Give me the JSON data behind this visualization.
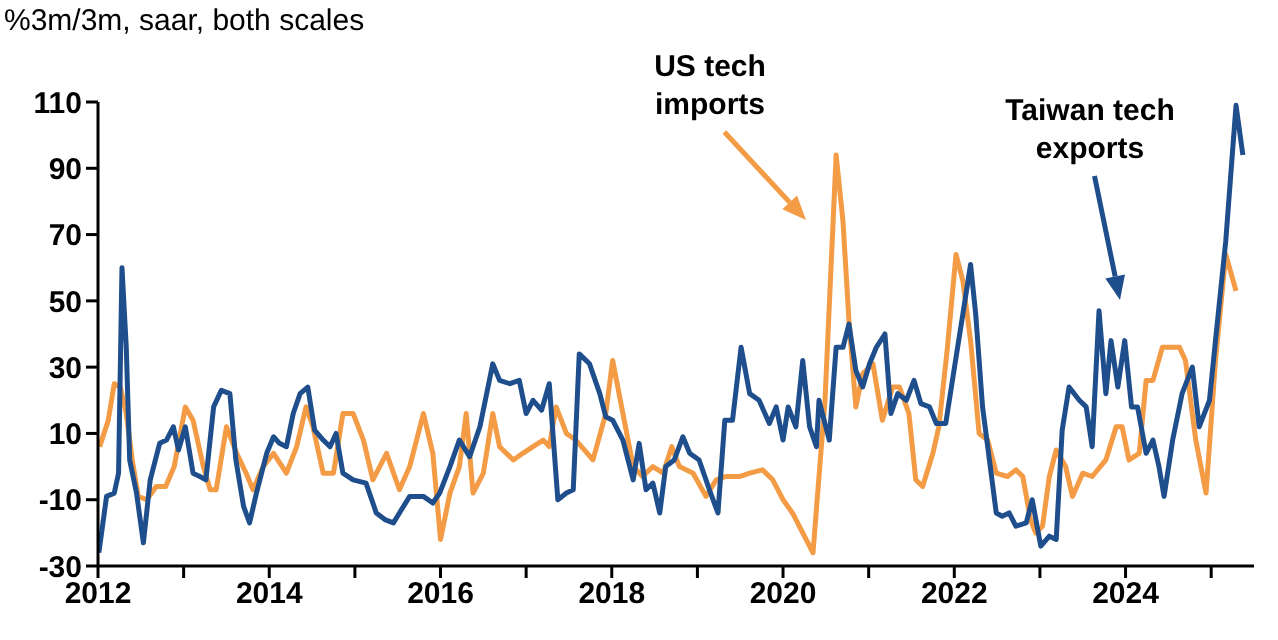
{
  "chart_data": {
    "type": "line",
    "title": "%3m/3m, saar, both scales",
    "xlim": [
      2012,
      2025.5
    ],
    "xticks": [
      2012,
      {
        "value": 2013,
        "label": null
      },
      2014,
      {
        "value": 2015,
        "label": null
      },
      2016,
      {
        "value": 2017,
        "label": null
      },
      2018,
      {
        "value": 2019,
        "label": null
      },
      2020,
      {
        "value": 2021,
        "label": null
      },
      2022,
      {
        "value": 2023,
        "label": null
      },
      2024,
      {
        "value": 2025,
        "label": null
      }
    ],
    "ylim": [
      -30,
      110
    ],
    "yticks": [
      -30,
      -10,
      10,
      30,
      50,
      70,
      90,
      110
    ],
    "grid": false,
    "legend": false,
    "marker": "none",
    "line_style": "solid",
    "series": [
      {
        "color": "#f39b45",
        "x": [
          2012.02,
          2012.12,
          2012.19,
          2012.26,
          2012.33,
          2012.4,
          2012.47,
          2012.57,
          2012.68,
          2012.79,
          2012.89,
          2013.02,
          2013.11,
          2013.23,
          2013.31,
          2013.38,
          2013.5,
          2013.62,
          2013.73,
          2013.81,
          2013.93,
          2014.05,
          2014.2,
          2014.32,
          2014.43,
          2014.51,
          2014.63,
          2014.75,
          2014.86,
          2014.98,
          2015.1,
          2015.21,
          2015.37,
          2015.52,
          2015.64,
          2015.8,
          2015.91,
          2016.0,
          2016.11,
          2016.22,
          2016.3,
          2016.38,
          2016.5,
          2016.61,
          2016.69,
          2016.85,
          2016.96,
          2017.08,
          2017.2,
          2017.27,
          2017.35,
          2017.47,
          2017.58,
          2017.78,
          2017.93,
          2018.01,
          2018.13,
          2018.25,
          2018.36,
          2018.48,
          2018.6,
          2018.7,
          2018.79,
          2018.95,
          2019.1,
          2019.22,
          2019.33,
          2019.49,
          2019.61,
          2019.76,
          2019.88,
          2020.0,
          2020.11,
          2020.23,
          2020.35,
          2020.49,
          2020.62,
          2020.7,
          2020.77,
          2020.85,
          2020.93,
          2021.05,
          2021.16,
          2021.28,
          2021.36,
          2021.47,
          2021.55,
          2021.63,
          2021.75,
          2021.82,
          2021.92,
          2022.02,
          2022.1,
          2022.19,
          2022.29,
          2022.39,
          2022.49,
          2022.62,
          2022.72,
          2022.8,
          2022.89,
          2022.95,
          2023.03,
          2023.11,
          2023.19,
          2023.3,
          2023.38,
          2023.5,
          2023.61,
          2023.77,
          2023.89,
          2023.96,
          2024.04,
          2024.16,
          2024.24,
          2024.32,
          2024.43,
          2024.63,
          2024.7,
          2024.82,
          2024.94,
          2025.05,
          2025.17,
          2025.29
        ],
        "values": [
          6,
          14,
          25,
          24,
          16,
          2,
          -9,
          -10,
          -6,
          -6,
          0,
          18,
          14,
          0,
          -7,
          -7,
          12,
          4,
          -2,
          -7,
          0,
          4,
          -2,
          6,
          18,
          12,
          -2,
          -2,
          16,
          16,
          8,
          -4,
          4,
          -7,
          0,
          16,
          4,
          -22,
          -8,
          0,
          16,
          -8,
          -2,
          16,
          6,
          2,
          4,
          6,
          8,
          6,
          18,
          10,
          8,
          2,
          16,
          32,
          16,
          0,
          -3,
          0,
          -2,
          6,
          0,
          -2,
          -9,
          -4,
          -3,
          -3,
          -2,
          -1,
          -4,
          -10,
          -14,
          -20,
          -26,
          20,
          94,
          74,
          44,
          18,
          28,
          31,
          14,
          24,
          24,
          16,
          -4,
          -6,
          4,
          12,
          36,
          64,
          56,
          38,
          10,
          8,
          -2,
          -3,
          -1,
          -3,
          -16,
          -20,
          -18,
          -3,
          5,
          0,
          -9,
          -2,
          -3,
          2,
          12,
          12,
          2,
          4,
          26,
          26,
          36,
          36,
          32,
          8,
          -8,
          32,
          64,
          53
        ]
      },
      {
        "color": "#1f4e8c",
        "x": [
          2012.01,
          2012.1,
          2012.19,
          2012.24,
          2012.28,
          2012.33,
          2012.37,
          2012.45,
          2012.53,
          2012.61,
          2012.72,
          2012.8,
          2012.88,
          2012.94,
          2013.02,
          2013.11,
          2013.19,
          2013.26,
          2013.35,
          2013.44,
          2013.54,
          2013.61,
          2013.7,
          2013.77,
          2013.85,
          2013.97,
          2014.05,
          2014.12,
          2014.2,
          2014.28,
          2014.36,
          2014.45,
          2014.53,
          2014.63,
          2014.71,
          2014.78,
          2014.86,
          2014.98,
          2015.13,
          2015.25,
          2015.35,
          2015.45,
          2015.52,
          2015.64,
          2015.8,
          2015.91,
          2015.99,
          2016.11,
          2016.22,
          2016.34,
          2016.46,
          2016.61,
          2016.69,
          2016.81,
          2016.92,
          2017.0,
          2017.08,
          2017.18,
          2017.27,
          2017.37,
          2017.47,
          2017.55,
          2017.62,
          2017.74,
          2017.86,
          2017.93,
          2018.01,
          2018.13,
          2018.25,
          2018.32,
          2018.4,
          2018.48,
          2018.56,
          2018.63,
          2018.73,
          2018.83,
          2018.91,
          2019.02,
          2019.14,
          2019.24,
          2019.32,
          2019.41,
          2019.51,
          2019.61,
          2019.72,
          2019.84,
          2019.92,
          2020.0,
          2020.06,
          2020.15,
          2020.23,
          2020.31,
          2020.39,
          2020.42,
          2020.54,
          2020.62,
          2020.7,
          2020.77,
          2020.85,
          2020.93,
          2021.01,
          2021.09,
          2021.19,
          2021.26,
          2021.34,
          2021.44,
          2021.53,
          2021.61,
          2021.71,
          2021.79,
          2021.9,
          2021.99,
          2022.1,
          2022.19,
          2022.25,
          2022.33,
          2022.41,
          2022.49,
          2022.56,
          2022.64,
          2022.72,
          2022.84,
          2022.91,
          2023.01,
          2023.11,
          2023.19,
          2023.26,
          2023.34,
          2023.46,
          2023.54,
          2023.61,
          2023.69,
          2023.77,
          2023.83,
          2023.91,
          2023.99,
          2024.07,
          2024.14,
          2024.24,
          2024.32,
          2024.39,
          2024.45,
          2024.55,
          2024.66,
          2024.78,
          2024.86,
          2024.98,
          2025.05,
          2025.17,
          2025.29,
          2025.37
        ],
        "values": [
          -26,
          -9,
          -8,
          -2,
          60,
          36,
          2,
          -8,
          -23,
          -4,
          7,
          8,
          12,
          5,
          12,
          -2,
          -3,
          -4,
          18,
          23,
          22,
          2,
          -12,
          -17,
          -8,
          4,
          9,
          7,
          6,
          16,
          22,
          24,
          11,
          8,
          6,
          10,
          -2,
          -4,
          -5,
          -14,
          -16,
          -17,
          -14,
          -9,
          -9,
          -11,
          -8,
          0,
          8,
          3,
          12,
          31,
          26,
          25,
          26,
          16,
          20,
          17,
          25,
          -10,
          -8,
          -7,
          34,
          31,
          22,
          15,
          14,
          8,
          -4,
          7,
          -7,
          -5,
          -14,
          0,
          2,
          9,
          4,
          2,
          -7,
          -14,
          14,
          14,
          36,
          22,
          20,
          13,
          18,
          8,
          18,
          12,
          32,
          12,
          6,
          20,
          8,
          36,
          36,
          43,
          29,
          24,
          31,
          36,
          40,
          16,
          22,
          20,
          26,
          19,
          18,
          13,
          13,
          28,
          46,
          61,
          46,
          18,
          2,
          -14,
          -15,
          -14,
          -18,
          -17,
          -10,
          -24,
          -21,
          -22,
          11,
          24,
          20,
          18,
          6,
          47,
          22,
          38,
          24,
          38,
          18,
          18,
          4,
          8,
          0,
          -9,
          8,
          22,
          30,
          12,
          20,
          38,
          68,
          109,
          94
        ]
      }
    ],
    "annotations": [
      "US tech imports",
      "Taiwan tech exports"
    ]
  }
}
